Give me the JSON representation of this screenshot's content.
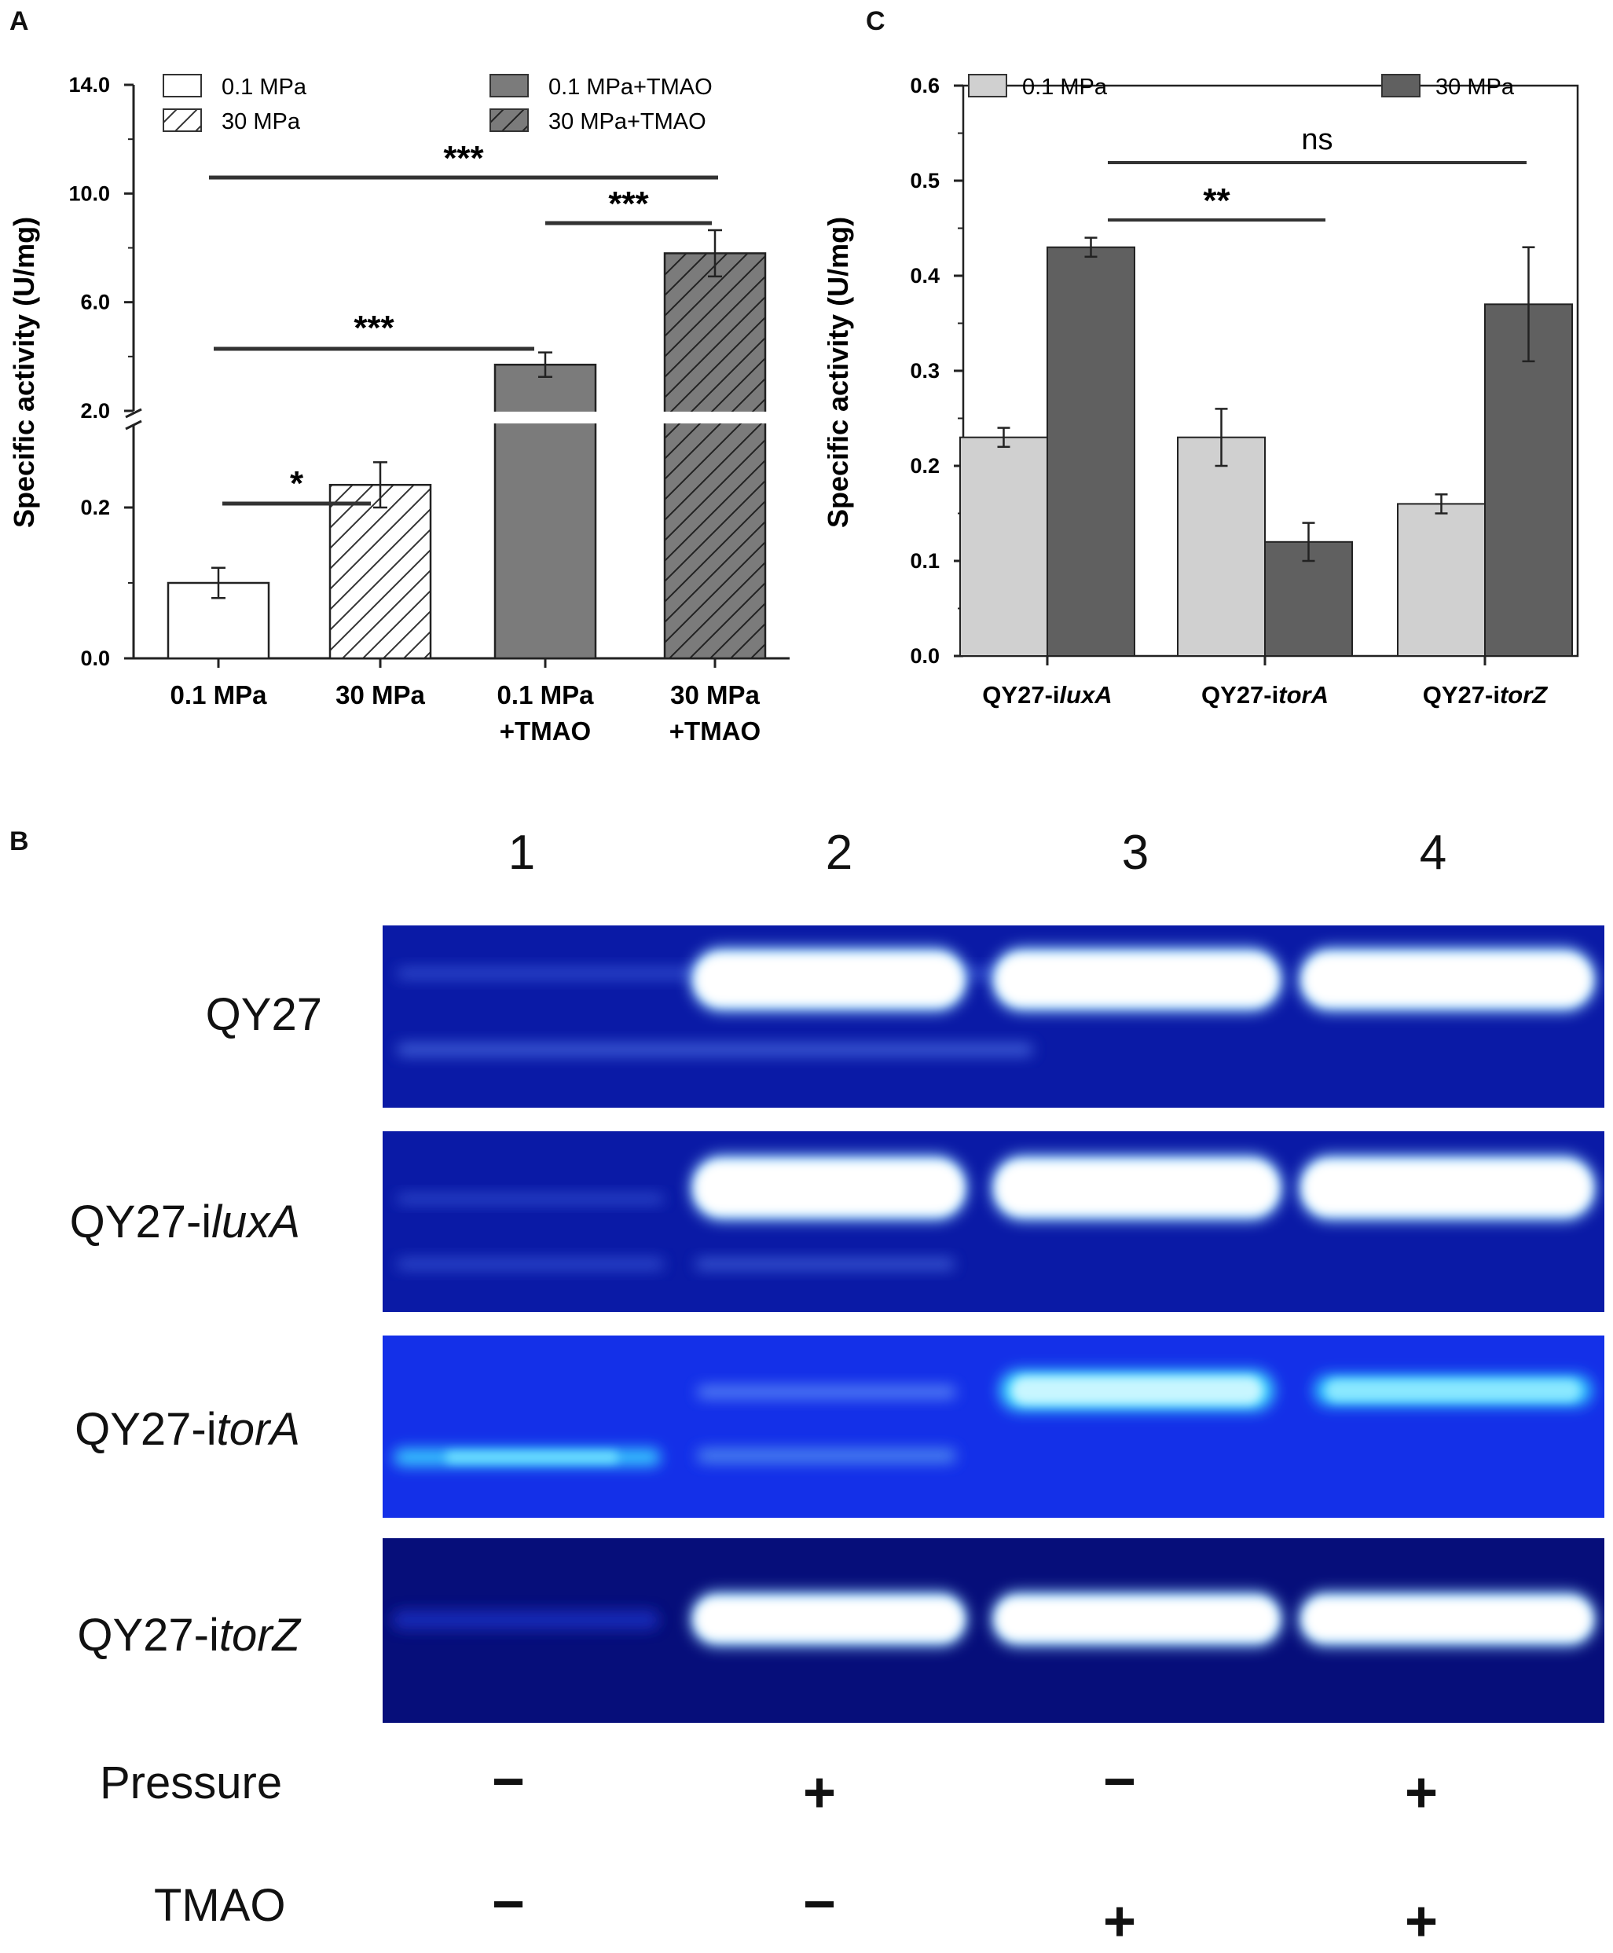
{
  "panels": {
    "A": {
      "letter": "A",
      "ylabel": "Specific activity (U/mg)",
      "yticks_upper": [
        "14.0",
        "10.0",
        "6.0",
        "2.0"
      ],
      "yticks_lower": [
        "0.2",
        "0.0"
      ],
      "categories": [
        "0.1 MPa",
        "30 MPa",
        "0.1 MPa\n+TMAO",
        "30 MPa\n+TMAO"
      ],
      "category_lines": [
        [
          "0.1 MPa"
        ],
        [
          "30 MPa"
        ],
        [
          "0.1 MPa",
          "+TMAO"
        ],
        [
          "30 MPa",
          "+TMAO"
        ]
      ],
      "legend": [
        "0.1 MPa",
        "30 MPa",
        "0.1 MPa+TMAO",
        "30 MPa+TMAO"
      ],
      "significance": [
        {
          "from": 0,
          "to": 1,
          "label": "*"
        },
        {
          "from": 0,
          "to": 2,
          "label": "***"
        },
        {
          "from": 2,
          "to": 3,
          "label": "***"
        },
        {
          "from": 0,
          "to": 3,
          "label": "***"
        }
      ]
    },
    "B": {
      "letter": "B",
      "lane_numbers": [
        "1",
        "2",
        "3",
        "4"
      ],
      "strains": [
        {
          "prefix": "QY27",
          "gene": ""
        },
        {
          "prefix": "QY27-i",
          "gene": "luxA"
        },
        {
          "prefix": "QY27-i",
          "gene": "torA"
        },
        {
          "prefix": "QY27-i",
          "gene": "torZ"
        }
      ],
      "conditions": [
        {
          "label": "Pressure",
          "signs": [
            "−",
            "+",
            "−",
            "+"
          ]
        },
        {
          "label": "TMAO",
          "signs": [
            "−",
            "−",
            "+",
            "+"
          ]
        }
      ],
      "gel_color": "#0a1fa8",
      "band_color": "#ffffff"
    },
    "C": {
      "letter": "C",
      "ylabel": "Specific activity (U/mg)",
      "legend": [
        "0.1 MPa",
        "30 MPa"
      ],
      "category_prefix": [
        "QY27-i",
        "QY27-i",
        "QY27-i"
      ],
      "category_gene": [
        "luxA",
        "torA",
        "torZ"
      ],
      "significance": [
        {
          "label": "**"
        },
        {
          "label": "ns"
        }
      ]
    }
  },
  "chart_data": [
    {
      "type": "bar",
      "panel": "A",
      "categories": [
        "0.1 MPa",
        "30 MPa",
        "0.1 MPa +TMAO",
        "30 MPa +TMAO"
      ],
      "values": [
        0.1,
        0.23,
        3.7,
        7.8
      ],
      "errors": [
        0.02,
        0.03,
        0.45,
        0.85
      ],
      "ylabel": "Specific activity (U/mg)",
      "ylim_lower": [
        0.0,
        0.3
      ],
      "ylim_upper": [
        2.0,
        14.0
      ],
      "axis_break": true,
      "fills": [
        "#ffffff",
        "hatch-white",
        "#7b7b7b",
        "hatch-gray"
      ],
      "legend_position": "top"
    },
    {
      "type": "bar",
      "panel": "C",
      "categories": [
        "QY27-iluxA",
        "QY27-itorA",
        "QY27-itorZ"
      ],
      "series": [
        {
          "name": "0.1 MPa",
          "values": [
            0.23,
            0.23,
            0.16
          ],
          "errors": [
            0.01,
            0.03,
            0.01
          ],
          "color": "#d0d0d0"
        },
        {
          "name": "30 MPa",
          "values": [
            0.43,
            0.12,
            0.37
          ],
          "errors": [
            0.01,
            0.02,
            0.06
          ],
          "color": "#606060"
        }
      ],
      "ylabel": "Specific activity (U/mg)",
      "ylim": [
        0.0,
        0.6
      ],
      "yticks": [
        "0.0",
        "0.1",
        "0.2",
        "0.3",
        "0.4",
        "0.5",
        "0.6"
      ],
      "legend_position": "top"
    }
  ]
}
